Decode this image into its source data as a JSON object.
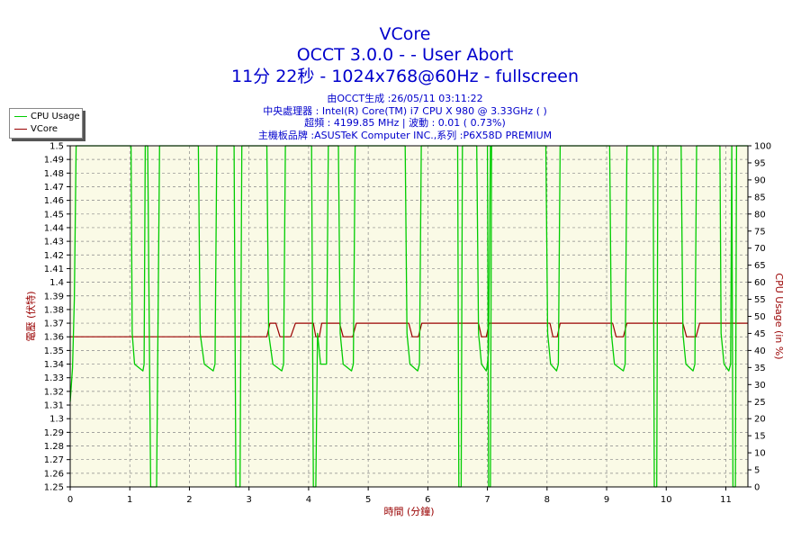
{
  "header": {
    "title": "VCore",
    "subtitle1": "OCCT 3.0.0 -  - User Abort",
    "subtitle2": "11分 22秒 - 1024x768@60Hz - fullscreen"
  },
  "info": {
    "line1": "由OCCT生成 :26/05/11 03:11:22",
    "line2": "中央處理器 : Intel(R) Core(TM) i7 CPU X 980 @ 3.33GHz ( )",
    "line3": "超頻 : 4199.85 MHz | 波動 : 0.01 ( 0.73%)",
    "line4": "主機板品牌 :ASUSTeK Computer INC.,系列 :P6X58D PREMIUM"
  },
  "legend": {
    "cpu_usage": "CPU Usage",
    "vcore": "VCore"
  },
  "colors": {
    "cpu_usage": "#00cc00",
    "vcore": "#990000",
    "plot_bg": "#fafae6",
    "grid": "#888888",
    "title": "#0000cc",
    "left_axis_label": "#990000",
    "right_axis_label": "#990000"
  },
  "chart_data": {
    "type": "line",
    "xlabel": "時間 (分鐘)",
    "ylabel_left": "電壓 (伏特)",
    "ylabel_right": "CPU Usage (in %)",
    "xlim": [
      0,
      11.37
    ],
    "ylim_left": [
      1.25,
      1.5
    ],
    "ylim_right": [
      0,
      100
    ],
    "x_ticks": [
      0,
      1,
      2,
      3,
      4,
      5,
      6,
      7,
      8,
      9,
      10,
      11
    ],
    "y_left_ticks": [
      1.25,
      1.26,
      1.27,
      1.28,
      1.29,
      1.3,
      1.31,
      1.32,
      1.33,
      1.34,
      1.35,
      1.36,
      1.37,
      1.38,
      1.39,
      1.4,
      1.41,
      1.42,
      1.43,
      1.44,
      1.45,
      1.46,
      1.47,
      1.48,
      1.49,
      1.5
    ],
    "y_left_tick_labels": [
      "1.25",
      "1.26",
      "1.27",
      "1.28",
      "1.29",
      "1.3",
      "1.31",
      "1.32",
      "1.33",
      "1.34",
      "1.35",
      "1.36",
      "1.37",
      "1.38",
      "1.39",
      "1.4",
      "1.41",
      "1.42",
      "1.43",
      "1.44",
      "1.45",
      "1.46",
      "1.47",
      "1.48",
      "1.49",
      "1.5"
    ],
    "y_right_ticks": [
      0,
      5,
      10,
      15,
      20,
      25,
      30,
      35,
      40,
      45,
      50,
      55,
      60,
      65,
      70,
      75,
      80,
      85,
      90,
      95,
      100
    ],
    "grid": true,
    "legend_position": "top-left",
    "series": [
      {
        "name": "VCore",
        "axis": "left",
        "points": [
          [
            0,
            1.36
          ],
          [
            3.3,
            1.36
          ],
          [
            3.35,
            1.37
          ],
          [
            3.45,
            1.37
          ],
          [
            3.52,
            1.36
          ],
          [
            3.7,
            1.36
          ],
          [
            3.78,
            1.37
          ],
          [
            4.08,
            1.37
          ],
          [
            4.12,
            1.36
          ],
          [
            4.18,
            1.36
          ],
          [
            4.22,
            1.37
          ],
          [
            4.52,
            1.37
          ],
          [
            4.58,
            1.36
          ],
          [
            4.74,
            1.36
          ],
          [
            4.8,
            1.37
          ],
          [
            5.68,
            1.37
          ],
          [
            5.74,
            1.36
          ],
          [
            5.84,
            1.36
          ],
          [
            5.9,
            1.37
          ],
          [
            6.85,
            1.37
          ],
          [
            6.9,
            1.36
          ],
          [
            6.98,
            1.36
          ],
          [
            7.03,
            1.37
          ],
          [
            8.05,
            1.37
          ],
          [
            8.1,
            1.36
          ],
          [
            8.17,
            1.36
          ],
          [
            8.22,
            1.37
          ],
          [
            9.1,
            1.37
          ],
          [
            9.16,
            1.36
          ],
          [
            9.28,
            1.36
          ],
          [
            9.34,
            1.37
          ],
          [
            10.28,
            1.37
          ],
          [
            10.34,
            1.36
          ],
          [
            10.5,
            1.36
          ],
          [
            10.56,
            1.37
          ],
          [
            11.37,
            1.37
          ]
        ]
      },
      {
        "name": "CPU Usage",
        "axis": "right",
        "points": [
          [
            0,
            25
          ],
          [
            0.04,
            35
          ],
          [
            0.07,
            55
          ],
          [
            0.1,
            100
          ],
          [
            1.02,
            100
          ],
          [
            1.04,
            45
          ],
          [
            1.08,
            36
          ],
          [
            1.22,
            34
          ],
          [
            1.24,
            36
          ],
          [
            1.26,
            100
          ],
          [
            1.3,
            100
          ],
          [
            1.35,
            0
          ],
          [
            1.45,
            0
          ],
          [
            1.5,
            100
          ],
          [
            2.15,
            100
          ],
          [
            2.18,
            45
          ],
          [
            2.25,
            36
          ],
          [
            2.4,
            34
          ],
          [
            2.43,
            36
          ],
          [
            2.46,
            100
          ],
          [
            2.75,
            100
          ],
          [
            2.78,
            0
          ],
          [
            2.85,
            0
          ],
          [
            2.88,
            100
          ],
          [
            3.3,
            100
          ],
          [
            3.33,
            45
          ],
          [
            3.4,
            36
          ],
          [
            3.55,
            34
          ],
          [
            3.58,
            36
          ],
          [
            3.61,
            100
          ],
          [
            4.05,
            100
          ],
          [
            4.08,
            0
          ],
          [
            4.12,
            0
          ],
          [
            4.15,
            45
          ],
          [
            4.2,
            36
          ],
          [
            4.3,
            36
          ],
          [
            4.33,
            100
          ],
          [
            4.5,
            100
          ],
          [
            4.53,
            45
          ],
          [
            4.58,
            36
          ],
          [
            4.72,
            34
          ],
          [
            4.75,
            36
          ],
          [
            4.78,
            100
          ],
          [
            5.62,
            100
          ],
          [
            5.65,
            45
          ],
          [
            5.7,
            36
          ],
          [
            5.83,
            34
          ],
          [
            5.86,
            36
          ],
          [
            5.89,
            100
          ],
          [
            6.5,
            100
          ],
          [
            6.52,
            0
          ],
          [
            6.56,
            0
          ],
          [
            6.58,
            100
          ],
          [
            6.82,
            100
          ],
          [
            6.85,
            45
          ],
          [
            6.9,
            36
          ],
          [
            6.98,
            34
          ],
          [
            7.0,
            36
          ],
          [
            7.02,
            40
          ],
          [
            7.05,
            100
          ],
          [
            7.0,
            100
          ],
          [
            7.02,
            0
          ],
          [
            7.05,
            0
          ],
          [
            7.07,
            100
          ],
          [
            7.98,
            100
          ],
          [
            8.01,
            45
          ],
          [
            8.06,
            36
          ],
          [
            8.16,
            34
          ],
          [
            8.19,
            36
          ],
          [
            8.22,
            100
          ],
          [
            9.05,
            100
          ],
          [
            9.08,
            45
          ],
          [
            9.13,
            36
          ],
          [
            9.28,
            34
          ],
          [
            9.31,
            36
          ],
          [
            9.34,
            100
          ],
          [
            9.78,
            100
          ],
          [
            9.8,
            0
          ],
          [
            9.84,
            0
          ],
          [
            9.86,
            100
          ],
          [
            10.25,
            100
          ],
          [
            10.28,
            45
          ],
          [
            10.33,
            36
          ],
          [
            10.45,
            34
          ],
          [
            10.48,
            36
          ],
          [
            10.51,
            100
          ],
          [
            10.9,
            100
          ],
          [
            10.92,
            45
          ],
          [
            10.97,
            36
          ],
          [
            11.05,
            34
          ],
          [
            11.08,
            36
          ],
          [
            11.1,
            100
          ],
          [
            11.12,
            0
          ],
          [
            11.16,
            0
          ],
          [
            11.18,
            100
          ],
          [
            11.37,
            100
          ]
        ]
      }
    ]
  }
}
